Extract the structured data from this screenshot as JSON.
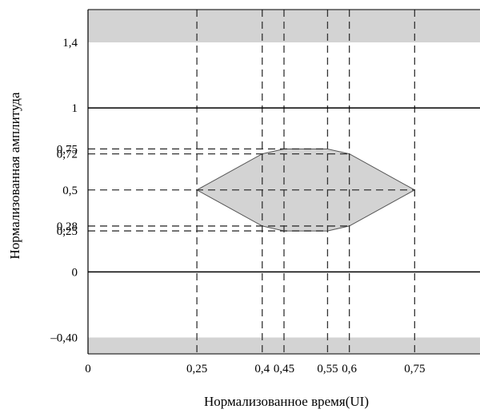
{
  "chart_data": {
    "type": "area",
    "title": "",
    "xlabel": "Нормализованное время(UI)",
    "ylabel": "Нормализованная амплитуда",
    "xlim": [
      0,
      0.9
    ],
    "ylim": [
      -0.5,
      1.6
    ],
    "x_ticks": [
      {
        "value": 0,
        "label": "0"
      },
      {
        "value": 0.25,
        "label": "0,25"
      },
      {
        "value": 0.4,
        "label": "0,4"
      },
      {
        "value": 0.45,
        "label": "0,45"
      },
      {
        "value": 0.55,
        "label": "0,55"
      },
      {
        "value": 0.6,
        "label": "0,6"
      },
      {
        "value": 0.75,
        "label": "0,75"
      }
    ],
    "y_ticks": [
      {
        "value": 1.4,
        "label": "1,4"
      },
      {
        "value": 1,
        "label": "1"
      },
      {
        "value": 0.75,
        "label": "0,75"
      },
      {
        "value": 0.72,
        "label": "0,72"
      },
      {
        "value": 0.5,
        "label": "0,5"
      },
      {
        "value": 0.28,
        "label": "0,28"
      },
      {
        "value": 0.25,
        "label": "0,25"
      },
      {
        "value": 0,
        "label": "0"
      },
      {
        "value": -0.4,
        "label": "–0,40"
      }
    ],
    "mask_polygon": [
      [
        0.25,
        0.5
      ],
      [
        0.4,
        0.72
      ],
      [
        0.45,
        0.75
      ],
      [
        0.55,
        0.75
      ],
      [
        0.6,
        0.72
      ],
      [
        0.75,
        0.5
      ],
      [
        0.6,
        0.28
      ],
      [
        0.55,
        0.25
      ],
      [
        0.45,
        0.25
      ],
      [
        0.4,
        0.28
      ]
    ],
    "upper_region": [
      1.4,
      1.6
    ],
    "lower_region": [
      -0.5,
      -0.4
    ],
    "solid_lines_y": [
      1,
      0
    ],
    "dashed_lines_x": [
      0.25,
      0.4,
      0.45,
      0.55,
      0.6,
      0.75
    ],
    "dashed_lines_y": [
      0.75,
      0.72,
      0.5,
      0.28,
      0.25
    ],
    "colors": {
      "fill": "#d3d3d3",
      "line": "#000000",
      "dash": "#333333"
    }
  }
}
